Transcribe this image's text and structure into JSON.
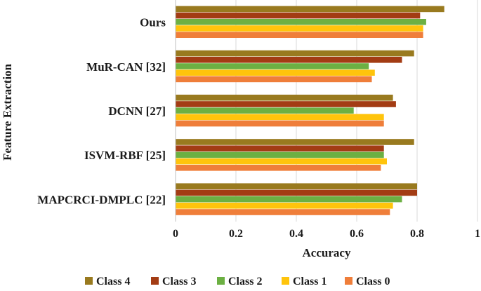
{
  "chart_data": {
    "type": "bar",
    "orientation": "horizontal",
    "title": "",
    "xlabel": "Accuracy",
    "ylabel": "Feature Extraction",
    "xlim": [
      0,
      1
    ],
    "x_ticks": [
      "0",
      "0.2",
      "0.4",
      "0.6",
      "0.8",
      "1"
    ],
    "grid": true,
    "legend_position": "bottom",
    "categories": [
      "Ours",
      "MuR-CAN [32]",
      "DCNN [27]",
      "ISVM-RBF [25]",
      "MAPCRCI-DMPLC [22]"
    ],
    "series": [
      {
        "name": "Class 4",
        "color": "#997A1F",
        "values": [
          0.89,
          0.79,
          0.72,
          0.79,
          0.8
        ]
      },
      {
        "name": "Class 3",
        "color": "#A33C14",
        "values": [
          0.81,
          0.75,
          0.73,
          0.69,
          0.8
        ]
      },
      {
        "name": "Class 2",
        "color": "#6CB043",
        "values": [
          0.83,
          0.64,
          0.59,
          0.69,
          0.75
        ]
      },
      {
        "name": "Class 1",
        "color": "#FFC40C",
        "values": [
          0.82,
          0.66,
          0.69,
          0.7,
          0.72
        ]
      },
      {
        "name": "Class 0",
        "color": "#EF7E3A",
        "values": [
          0.82,
          0.65,
          0.69,
          0.68,
          0.71
        ]
      }
    ]
  }
}
